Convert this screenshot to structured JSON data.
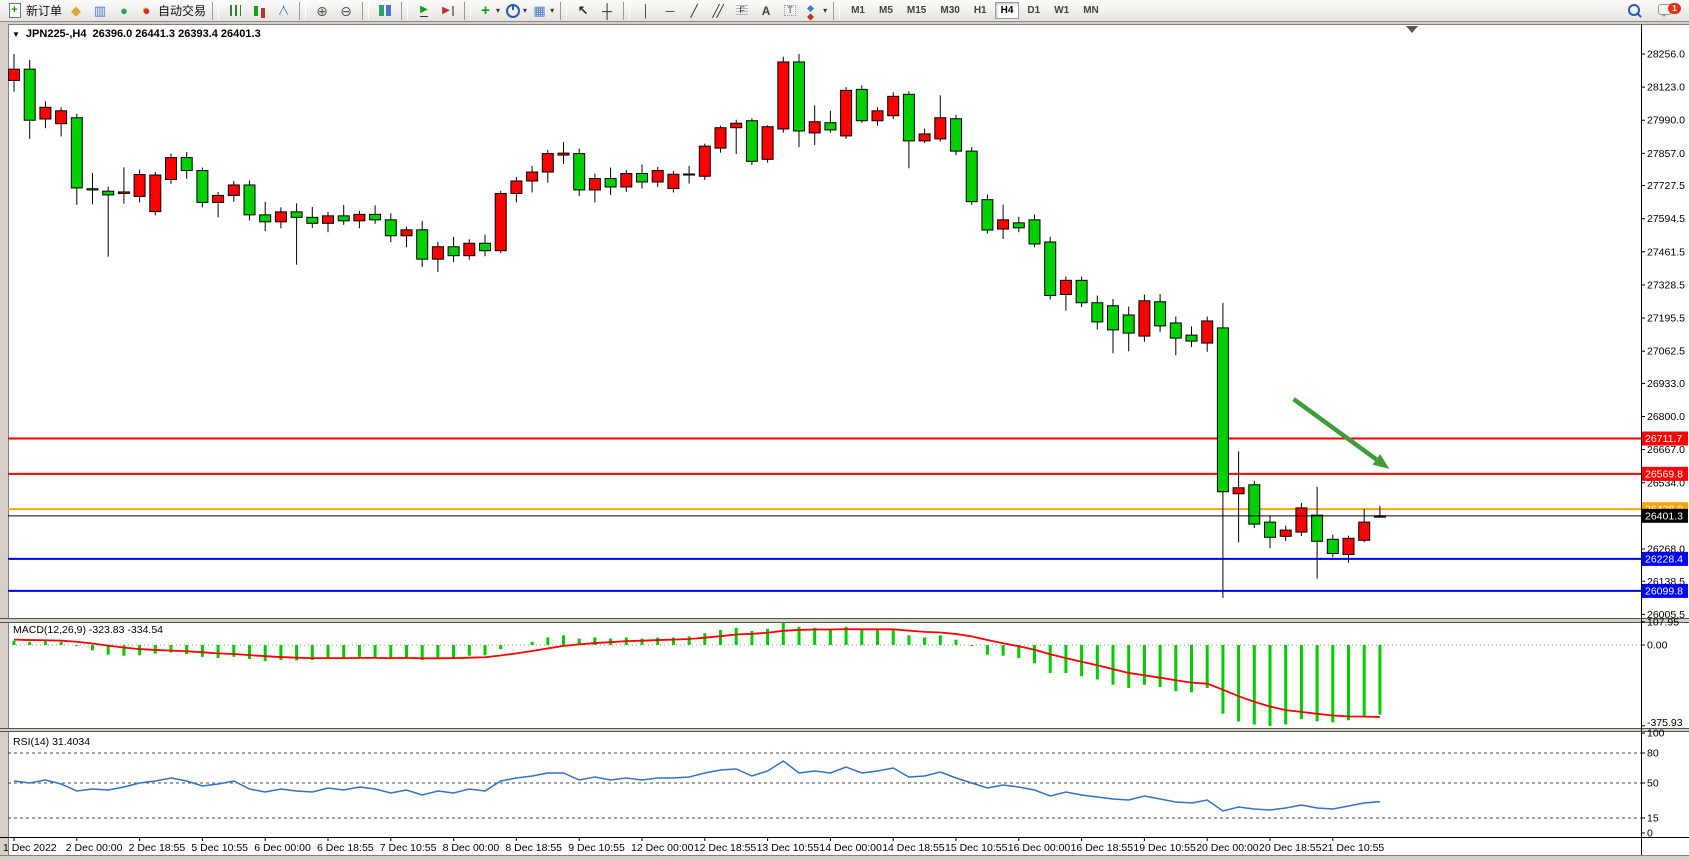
{
  "toolbar": {
    "groups": [
      {
        "items": [
          {
            "icon": "new-order-icon",
            "label": "新订单"
          },
          {
            "icon": "quotes-icon"
          },
          {
            "icon": "market-watch-icon"
          },
          {
            "icon": "navigator-icon"
          },
          {
            "icon": "autotrade-icon",
            "label": "自动交易"
          }
        ]
      },
      {
        "items": [
          {
            "icon": "bar-chart-icon"
          },
          {
            "icon": "candlestick-chart-icon"
          },
          {
            "icon": "line-chart-icon"
          }
        ]
      },
      {
        "items": [
          {
            "icon": "zoom-in-icon"
          },
          {
            "icon": "zoom-out-icon"
          }
        ]
      },
      {
        "items": [
          {
            "icon": "tile-windows-icon"
          }
        ]
      },
      {
        "items": [
          {
            "icon": "auto-scroll-icon"
          },
          {
            "icon": "chart-shift-icon"
          }
        ]
      },
      {
        "items": [
          {
            "icon": "indicators-icon",
            "dropdown": true
          },
          {
            "icon": "periods-icon",
            "dropdown": true
          },
          {
            "icon": "templates-icon",
            "dropdown": true
          }
        ]
      },
      {
        "items": [
          {
            "icon": "cursor-icon"
          },
          {
            "icon": "crosshair-icon"
          }
        ]
      },
      {
        "items": [
          {
            "icon": "vertical-line-icon"
          },
          {
            "icon": "horizontal-line-icon"
          },
          {
            "icon": "trendline-icon"
          },
          {
            "icon": "channel-icon"
          },
          {
            "icon": "fibonacci-icon"
          },
          {
            "icon": "text-icon"
          },
          {
            "icon": "text-label-icon"
          },
          {
            "icon": "arrows-icon",
            "dropdown": true
          }
        ]
      }
    ],
    "timeframes": {
      "options": [
        "M1",
        "M5",
        "M15",
        "M30",
        "H1",
        "H4",
        "D1",
        "W1",
        "MN"
      ],
      "active": "H4"
    },
    "right": [
      {
        "icon": "search-icon"
      },
      {
        "icon": "community-icon",
        "badge": "1"
      }
    ]
  },
  "chart": {
    "title": "JPN225-,H4",
    "ohlc_text": "26396.0 26441.3 26393.4 26401.3"
  },
  "chart_data": {
    "type": "candlestick",
    "symbol": "JPN225-",
    "period": "H4",
    "grid": false,
    "quote_ohlc": [
      26396.0,
      26441.3,
      26393.4,
      26401.3
    ],
    "current_price": 26401.3,
    "price_range_visible": [
      25990,
      28380
    ],
    "bull_color": "#FF0000",
    "bear_color": "#00CF00",
    "price_axis_labels": [
      28256.0,
      28123.0,
      27990.0,
      27857.0,
      27727.5,
      27594.5,
      27461.5,
      27328.5,
      27195.5,
      27062.5,
      26933.0,
      26800.0,
      26667.0,
      26534.0,
      26268.0,
      26138.5,
      26005.5
    ],
    "time_axis_labels": [
      "1 Dec 2022",
      "2 Dec 00:00",
      "2 Dec 18:55",
      "5 Dec 10:55",
      "6 Dec 00:00",
      "6 Dec 18:55",
      "7 Dec 10:55",
      "8 Dec 00:00",
      "8 Dec 18:55",
      "9 Dec 10:55",
      "12 Dec 00:00",
      "12 Dec 18:55",
      "13 Dec 10:55",
      "14 Dec 00:00",
      "14 Dec 18:55",
      "15 Dec 10:55",
      "16 Dec 00:00",
      "16 Dec 18:55",
      "19 Dec 10:55",
      "20 Dec 00:00",
      "20 Dec 18:55",
      "21 Dec 10:55"
    ],
    "bars_per_tick": 4,
    "candles_ohlc": [
      [
        28150,
        28256,
        28105,
        28195
      ],
      [
        28195,
        28232,
        27915,
        27990
      ],
      [
        27995,
        28066,
        27958,
        28042
      ],
      [
        27976,
        28042,
        27925,
        28028
      ],
      [
        28000,
        28016,
        27650,
        27718
      ],
      [
        27715,
        27778,
        27652,
        27710
      ],
      [
        27705,
        27724,
        27442,
        27690
      ],
      [
        27696,
        27801,
        27655,
        27702
      ],
      [
        27684,
        27792,
        27660,
        27772
      ],
      [
        27623,
        27782,
        27608,
        27770
      ],
      [
        27752,
        27856,
        27735,
        27840
      ],
      [
        27840,
        27862,
        27755,
        27788
      ],
      [
        27788,
        27800,
        27640,
        27660
      ],
      [
        27660,
        27702,
        27600,
        27688
      ],
      [
        27688,
        27746,
        27662,
        27730
      ],
      [
        27730,
        27748,
        27588,
        27610
      ],
      [
        27610,
        27662,
        27545,
        27582
      ],
      [
        27582,
        27640,
        27556,
        27622
      ],
      [
        27622,
        27656,
        27410,
        27600
      ],
      [
        27600,
        27642,
        27558,
        27576
      ],
      [
        27576,
        27622,
        27540,
        27606
      ],
      [
        27606,
        27650,
        27570,
        27586
      ],
      [
        27586,
        27626,
        27556,
        27612
      ],
      [
        27612,
        27648,
        27574,
        27590
      ],
      [
        27590,
        27616,
        27500,
        27526
      ],
      [
        27526,
        27562,
        27480,
        27550
      ],
      [
        27550,
        27586,
        27400,
        27432
      ],
      [
        27432,
        27502,
        27380,
        27482
      ],
      [
        27482,
        27522,
        27420,
        27446
      ],
      [
        27446,
        27512,
        27430,
        27496
      ],
      [
        27496,
        27530,
        27444,
        27466
      ],
      [
        27466,
        27706,
        27456,
        27696
      ],
      [
        27696,
        27762,
        27660,
        27746
      ],
      [
        27746,
        27806,
        27700,
        27782
      ],
      [
        27782,
        27870,
        27740,
        27856
      ],
      [
        27850,
        27902,
        27814,
        27858
      ],
      [
        27856,
        27876,
        27686,
        27710
      ],
      [
        27710,
        27776,
        27660,
        27756
      ],
      [
        27756,
        27800,
        27690,
        27722
      ],
      [
        27722,
        27790,
        27702,
        27776
      ],
      [
        27776,
        27812,
        27716,
        27742
      ],
      [
        27742,
        27802,
        27722,
        27788
      ],
      [
        27716,
        27786,
        27700,
        27773
      ],
      [
        27770,
        27806,
        27736,
        27774
      ],
      [
        27765,
        27896,
        27750,
        27886
      ],
      [
        27878,
        27968,
        27860,
        27960
      ],
      [
        27960,
        27992,
        27854,
        27978
      ],
      [
        27988,
        27998,
        27810,
        27825
      ],
      [
        27833,
        27970,
        27820,
        27964
      ],
      [
        27955,
        28245,
        27940,
        28224
      ],
      [
        28224,
        28256,
        27882,
        27947
      ],
      [
        27939,
        28050,
        27890,
        27984
      ],
      [
        27980,
        28028,
        27940,
        27951
      ],
      [
        27927,
        28123,
        27915,
        28110
      ],
      [
        28114,
        28130,
        27980,
        27988
      ],
      [
        27988,
        28042,
        27968,
        28028
      ],
      [
        28008,
        28102,
        27995,
        28086
      ],
      [
        28094,
        28106,
        27797,
        27907
      ],
      [
        27907,
        27956,
        27898,
        27935
      ],
      [
        27915,
        28090,
        27905,
        28000
      ],
      [
        27996,
        28012,
        27850,
        27866
      ],
      [
        27866,
        27882,
        27650,
        27663
      ],
      [
        27671,
        27692,
        27535,
        27549
      ],
      [
        27553,
        27651,
        27513,
        27590
      ],
      [
        27578,
        27602,
        27540,
        27558
      ],
      [
        27590,
        27612,
        27480,
        27493
      ],
      [
        27501,
        27522,
        27270,
        27286
      ],
      [
        27290,
        27362,
        27225,
        27347
      ],
      [
        27347,
        27362,
        27240,
        27257
      ],
      [
        27257,
        27286,
        27150,
        27180
      ],
      [
        27245,
        27272,
        27054,
        27148
      ],
      [
        27208,
        27242,
        27062,
        27135
      ],
      [
        27123,
        27290,
        27100,
        27265
      ],
      [
        27261,
        27292,
        27140,
        27164
      ],
      [
        27176,
        27202,
        27046,
        27115
      ],
      [
        27127,
        27162,
        27080,
        27103
      ],
      [
        27095,
        27202,
        27060,
        27184
      ],
      [
        27156,
        27257,
        26072,
        26498
      ],
      [
        26490,
        26660,
        26295,
        26514
      ],
      [
        26526,
        26542,
        26352,
        26368
      ],
      [
        26376,
        26402,
        26271,
        26315
      ],
      [
        26319,
        26362,
        26300,
        26344
      ],
      [
        26336,
        26453,
        26320,
        26433
      ],
      [
        26404,
        26518,
        26149,
        26299
      ],
      [
        26307,
        26326,
        26235,
        26250
      ],
      [
        26246,
        26322,
        26213,
        26311
      ],
      [
        26303,
        26429,
        26295,
        26376
      ],
      [
        26396,
        26441.3,
        26393.4,
        26401.3
      ]
    ],
    "hlines": [
      {
        "price": 26711.7,
        "color": "#FF0000",
        "label": "26711.7"
      },
      {
        "price": 26569.8,
        "color": "#FF0000",
        "label": "26569.8"
      },
      {
        "price": 26428.0,
        "color": "#FFA500",
        "label": "26428.0"
      },
      {
        "price": 26228.4,
        "color": "#0000FF",
        "label": "26228.4"
      },
      {
        "price": 26099.8,
        "color": "#0000FF",
        "label": "26099.8"
      }
    ],
    "price_line": {
      "price": 26401.3,
      "color": "#000000",
      "label": "26401.3"
    },
    "arrow_annotation": {
      "color": "#3E9C3A",
      "from_bar": 81.5,
      "from_price": 26870,
      "to_bar": 87.6,
      "to_price": 26590
    },
    "macd": {
      "label": "MACD(12,26,9)",
      "values_text": "-323.83 -334.54",
      "macd_value": -323.83,
      "signal_value": -334.54,
      "axis_labels": [
        {
          "text": "107.95",
          "value": 107.95
        },
        {
          "text": "0.00",
          "value": 0
        },
        {
          "text": "-375.93",
          "value": -375.93
        }
      ],
      "histogram_color": "#00CC00",
      "signal_color": "#FF0000",
      "histogram": [
        20,
        15,
        18,
        14,
        -5,
        -25,
        -45,
        -50,
        -48,
        -40,
        -35,
        -42,
        -55,
        -60,
        -55,
        -65,
        -75,
        -70,
        -72,
        -70,
        -62,
        -60,
        -55,
        -58,
        -65,
        -60,
        -70,
        -60,
        -58,
        -50,
        -48,
        -20,
        0,
        15,
        35,
        45,
        30,
        35,
        30,
        35,
        30,
        35,
        35,
        40,
        55,
        70,
        80,
        65,
        75,
        105,
        85,
        80,
        70,
        85,
        70,
        70,
        75,
        45,
        35,
        45,
        25,
        -5,
        -45,
        -50,
        -60,
        -85,
        -130,
        -130,
        -145,
        -160,
        -185,
        -200,
        -185,
        -195,
        -215,
        -220,
        -200,
        -320,
        -355,
        -370,
        -376,
        -370,
        -345,
        -355,
        -360,
        -350,
        -335,
        -323.83
      ],
      "signal": [
        25,
        23,
        22,
        20,
        15,
        7,
        -3,
        -12,
        -19,
        -23,
        -26,
        -29,
        -34,
        -39,
        -42,
        -47,
        -52,
        -56,
        -59,
        -61,
        -61,
        -61,
        -60,
        -60,
        -61,
        -60,
        -62,
        -62,
        -61,
        -59,
        -57,
        -49,
        -39,
        -28,
        -16,
        -4,
        3,
        9,
        13,
        18,
        20,
        23,
        25,
        28,
        34,
        41,
        49,
        52,
        57,
        66,
        70,
        72,
        72,
        74,
        73,
        73,
        73,
        67,
        61,
        58,
        51,
        40,
        23,
        8,
        -6,
        -22,
        -43,
        -61,
        -78,
        -94,
        -112,
        -130,
        -141,
        -152,
        -164,
        -175,
        -180,
        -208,
        -238,
        -264,
        -286,
        -303,
        -311,
        -320,
        -328,
        -332,
        -333,
        -334.54
      ]
    },
    "rsi": {
      "label": "RSI(14)",
      "value": 31.4034,
      "line_color": "#3273C2",
      "axis_labels": [
        100,
        80,
        50,
        15,
        0
      ],
      "dashed_levels": [
        80,
        50,
        15
      ],
      "series": [
        52,
        50,
        53,
        49,
        42,
        44,
        43,
        46,
        50,
        52,
        55,
        52,
        47,
        49,
        52,
        44,
        41,
        44,
        42,
        41,
        45,
        43,
        46,
        44,
        40,
        43,
        38,
        42,
        40,
        44,
        42,
        52,
        55,
        57,
        60,
        60,
        53,
        56,
        53,
        55,
        53,
        55,
        55,
        56,
        60,
        63,
        64,
        57,
        62,
        72,
        60,
        62,
        60,
        66,
        60,
        62,
        65,
        56,
        57,
        61,
        55,
        50,
        45,
        48,
        46,
        43,
        37,
        41,
        38,
        36,
        34,
        33,
        37,
        34,
        31,
        30,
        33,
        22,
        26,
        24,
        23,
        25,
        28,
        25,
        24,
        27,
        30,
        31.4
      ]
    }
  }
}
